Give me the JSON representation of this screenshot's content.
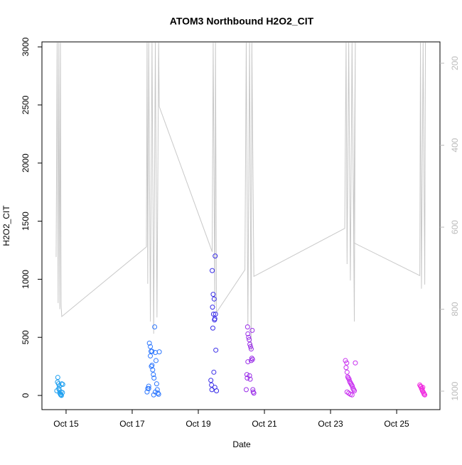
{
  "chart_data": {
    "type": "scatter",
    "title": "ATOM3 Northbound H2O2_CIT",
    "x_label": "Date",
    "y_label": "H2O2_CIT",
    "xlim": [
      14.27,
      26.31
    ],
    "xticks": [
      {
        "value": 15,
        "label": "Oct 15"
      },
      {
        "value": 17,
        "label": "Oct 17"
      },
      {
        "value": 19,
        "label": "Oct 19"
      },
      {
        "value": 21,
        "label": "Oct 21"
      },
      {
        "value": 23,
        "label": "Oct 23"
      },
      {
        "value": 25,
        "label": "Oct 25"
      }
    ],
    "ylim": [
      -122,
      3043
    ],
    "yticks": [
      0,
      500,
      1000,
      1500,
      2000,
      2500,
      3000
    ],
    "y2lim": [
      1045,
      148
    ],
    "y2ticks": [
      200,
      400,
      600,
      800,
      1000
    ],
    "series": [
      {
        "color": "#1ea0f0",
        "x": [
          14.72,
          14.74,
          14.75,
          14.77,
          14.78,
          14.8,
          14.81,
          14.83,
          14.84,
          14.86,
          14.87,
          14.89,
          14.9,
          14.79,
          14.85
        ],
        "values": [
          40,
          115,
          155,
          100,
          60,
          80,
          20,
          10,
          5,
          0,
          100,
          25,
          95,
          50,
          30
        ]
      },
      {
        "color": "#2e78ff",
        "x": [
          17.45,
          17.47,
          17.5,
          17.52,
          17.55,
          17.57,
          17.58,
          17.6,
          17.62,
          17.64,
          17.66,
          17.68,
          17.7,
          17.72,
          17.74,
          17.76,
          17.78,
          17.8,
          17.82,
          17.6,
          17.55,
          17.65,
          17.7,
          17.5
        ],
        "values": [
          30,
          60,
          80,
          450,
          420,
          380,
          250,
          260,
          220,
          180,
          150,
          590,
          370,
          300,
          100,
          50,
          20,
          10,
          375,
          380,
          340,
          5,
          30,
          60
        ]
      },
      {
        "color": "#3a2ee8",
        "x": [
          19.38,
          19.4,
          19.42,
          19.43,
          19.45,
          19.46,
          19.48,
          19.5,
          19.51,
          19.53,
          19.55,
          19.44,
          19.47,
          19.49,
          19.52,
          19.41,
          19.5
        ],
        "values": [
          130,
          90,
          1075,
          760,
          870,
          700,
          830,
          660,
          1200,
          390,
          40,
          580,
          200,
          650,
          700,
          50,
          70
        ]
      },
      {
        "color": "#9a2ee8",
        "x": [
          20.45,
          20.47,
          20.49,
          20.5,
          20.52,
          20.54,
          20.56,
          20.58,
          20.6,
          20.62,
          20.64,
          20.66,
          20.68,
          20.5,
          20.55,
          20.6,
          20.65,
          20.48,
          20.57,
          20.63
        ],
        "values": [
          50,
          180,
          590,
          530,
          500,
          480,
          440,
          420,
          400,
          320,
          310,
          30,
          20,
          290,
          170,
          300,
          50,
          150,
          140,
          560
        ]
      },
      {
        "color": "#c82ef0",
        "x": [
          23.45,
          23.47,
          23.49,
          23.5,
          23.52,
          23.54,
          23.56,
          23.58,
          23.6,
          23.62,
          23.64,
          23.66,
          23.68,
          23.7,
          23.72,
          23.5,
          23.55,
          23.6,
          23.65,
          23.75
        ],
        "values": [
          300,
          240,
          280,
          200,
          160,
          150,
          140,
          120,
          110,
          100,
          90,
          80,
          60,
          50,
          40,
          30,
          20,
          10,
          5,
          280
        ]
      },
      {
        "color": "#f02ee0",
        "x": [
          25.7,
          25.72,
          25.74,
          25.75,
          25.77,
          25.78,
          25.8,
          25.82,
          25.83,
          25.85,
          25.76,
          25.79
        ],
        "values": [
          90,
          80,
          75,
          60,
          50,
          40,
          30,
          20,
          10,
          5,
          60,
          70
        ]
      },
      {
        "type": "line",
        "axis": "y2",
        "color": "#c8c8c8",
        "x": [
          14.7,
          14.73,
          14.76,
          14.78,
          14.81,
          14.83,
          14.85,
          14.87,
          17.43,
          17.45,
          17.47,
          17.5,
          17.55,
          17.6,
          17.65,
          17.7,
          17.75,
          17.8,
          17.82,
          19.42,
          19.45,
          19.5,
          19.52,
          19.55,
          20.41,
          20.45,
          20.5,
          20.55,
          20.6,
          20.62,
          20.68,
          23.43,
          23.47,
          23.5,
          23.55,
          23.6,
          23.65,
          23.72,
          23.75,
          23.7,
          25.7,
          25.72,
          25.75,
          25.8,
          25.85,
          25.87
        ],
        "values": [
          673,
          150,
          785,
          150,
          800,
          150,
          792,
          818,
          648,
          150,
          738,
          150,
          830,
          150,
          860,
          150,
          820,
          150,
          306,
          660,
          150,
          790,
          150,
          808,
          704,
          150,
          840,
          150,
          900,
          150,
          720,
          603,
          150,
          690,
          150,
          730,
          150,
          830,
          150,
          638,
          718,
          150,
          750,
          150,
          740,
          150
        ]
      }
    ]
  }
}
